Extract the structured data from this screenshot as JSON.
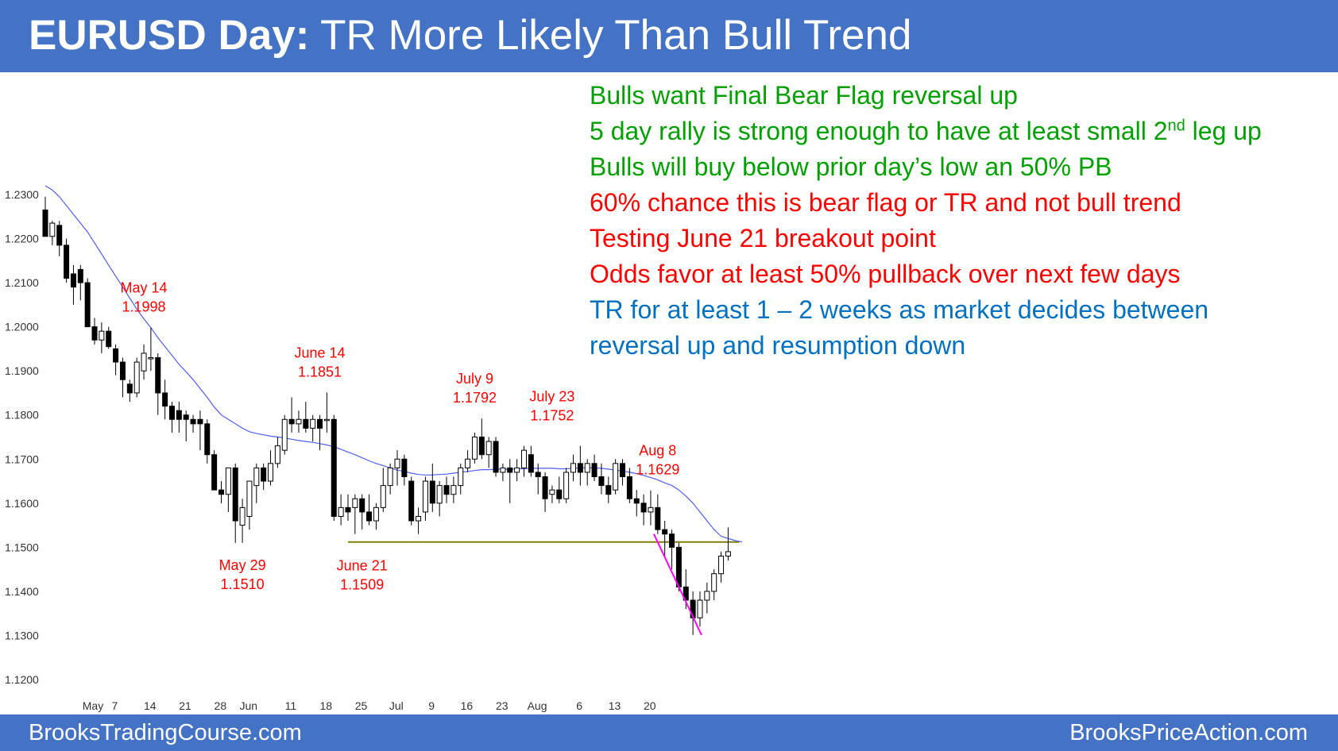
{
  "title": {
    "bold": "EURUSD Day:",
    "rest": " TR More Likely Than Bull Trend"
  },
  "footer": {
    "left": "BrooksTradingCourse.com",
    "right": "BrooksPriceAction.com"
  },
  "colors": {
    "banner": "#4472c4",
    "bull_text": "#00a000",
    "bear_text": "#ff0000",
    "neutral_text": "#0070c0",
    "annotation": "#ff0000",
    "moving_average": "#4f5ff0",
    "support_line": "#808000",
    "trend_line": "#ff00ff",
    "bear_candle": "#000000",
    "bull_candle": "#ffffff"
  },
  "notes": [
    {
      "text": "Bulls want Final Bear Flag reversal up",
      "color": "#00a000"
    },
    {
      "text": "5 day rally is strong enough to have at least small 2",
      "sup": "nd",
      "after": " leg up",
      "color": "#00a000"
    },
    {
      "text": "Bulls will buy below prior day’s low an 50% PB",
      "color": "#00a000"
    },
    {
      "text": "60% chance this is bear flag or TR and not bull trend",
      "color": "#ff0000"
    },
    {
      "text": "Testing June 21 breakout point",
      "color": "#ff0000"
    },
    {
      "text": "Odds favor at least 50% pullback over next few days",
      "color": "#ff0000"
    },
    {
      "text": "TR for at least 1 – 2 weeks as market decides between",
      "color": "#0070c0"
    },
    {
      "text": "reversal up and resumption down",
      "color": "#0070c0"
    }
  ],
  "chart_data": {
    "type": "candlestick",
    "ylim": [
      1.12,
      1.23
    ],
    "y_ticks": [
      "1.2300",
      "1.2200",
      "1.2100",
      "1.2000",
      "1.1900",
      "1.1800",
      "1.1700",
      "1.1600",
      "1.1500",
      "1.1400",
      "1.1300",
      "1.1200"
    ],
    "x_ticks": [
      "May",
      "7",
      "14",
      "21",
      "28",
      "Jun",
      "11",
      "18",
      "25",
      "Jul",
      "9",
      "16",
      "23",
      "Aug",
      "6",
      "13",
      "20"
    ],
    "candles": [
      {
        "d": "May 1",
        "o": 1.2265,
        "h": 1.2295,
        "l": 1.2205,
        "c": 1.2205
      },
      {
        "d": "May 2",
        "o": 1.2205,
        "h": 1.224,
        "l": 1.2185,
        "c": 1.2235
      },
      {
        "d": "May 3",
        "o": 1.223,
        "h": 1.224,
        "l": 1.216,
        "c": 1.2185
      },
      {
        "d": "May 4",
        "o": 1.2185,
        "h": 1.22,
        "l": 1.21,
        "c": 1.211
      },
      {
        "d": "May 7",
        "o": 1.212,
        "h": 1.214,
        "l": 1.205,
        "c": 1.209
      },
      {
        "d": "May 8",
        "o": 1.213,
        "h": 1.214,
        "l": 1.206,
        "c": 1.21
      },
      {
        "d": "May 9",
        "o": 1.21,
        "h": 1.211,
        "l": 1.2,
        "c": 1.2
      },
      {
        "d": "May 10",
        "o": 1.2,
        "h": 1.202,
        "l": 1.196,
        "c": 1.197
      },
      {
        "d": "May 11",
        "o": 1.197,
        "h": 1.201,
        "l": 1.194,
        "c": 1.199
      },
      {
        "d": "May 14",
        "o": 1.199,
        "h": 1.2,
        "l": 1.195,
        "c": 1.1955
      },
      {
        "d": "May 15",
        "o": 1.195,
        "h": 1.196,
        "l": 1.189,
        "c": 1.192
      },
      {
        "d": "May 16",
        "o": 1.192,
        "h": 1.193,
        "l": 1.184,
        "c": 1.188
      },
      {
        "d": "May 17",
        "o": 1.187,
        "h": 1.188,
        "l": 1.183,
        "c": 1.185
      },
      {
        "d": "May 18",
        "o": 1.185,
        "h": 1.193,
        "l": 1.184,
        "c": 1.192
      },
      {
        "d": "May 21",
        "o": 1.19,
        "h": 1.196,
        "l": 1.188,
        "c": 1.194
      },
      {
        "d": "May 22",
        "o": 1.193,
        "h": 1.1998,
        "l": 1.19,
        "c": 1.193
      },
      {
        "d": "May 23",
        "o": 1.193,
        "h": 1.194,
        "l": 1.18,
        "c": 1.185
      },
      {
        "d": "May 24",
        "o": 1.185,
        "h": 1.188,
        "l": 1.179,
        "c": 1.182
      },
      {
        "d": "May 25",
        "o": 1.182,
        "h": 1.183,
        "l": 1.176,
        "c": 1.179
      },
      {
        "d": "May 28",
        "o": 1.181,
        "h": 1.183,
        "l": 1.176,
        "c": 1.179
      },
      {
        "d": "May 29",
        "o": 1.18,
        "h": 1.181,
        "l": 1.174,
        "c": 1.179
      },
      {
        "d": "May 30",
        "o": 1.179,
        "h": 1.18,
        "l": 1.176,
        "c": 1.178
      },
      {
        "d": "May 31",
        "o": 1.179,
        "h": 1.181,
        "l": 1.172,
        "c": 1.178
      },
      {
        "d": "Jun 1",
        "o": 1.178,
        "h": 1.179,
        "l": 1.169,
        "c": 1.171
      },
      {
        "d": "Jun 4",
        "o": 1.171,
        "h": 1.172,
        "l": 1.163,
        "c": 1.163
      },
      {
        "d": "Jun 5",
        "o": 1.163,
        "h": 1.165,
        "l": 1.16,
        "c": 1.162
      },
      {
        "d": "Jun 6",
        "o": 1.162,
        "h": 1.168,
        "l": 1.158,
        "c": 1.168
      },
      {
        "d": "Jun 7",
        "o": 1.168,
        "h": 1.169,
        "l": 1.151,
        "c": 1.156
      },
      {
        "d": "Jun 8",
        "o": 1.155,
        "h": 1.161,
        "l": 1.151,
        "c": 1.159
      },
      {
        "d": "Jun 11",
        "o": 1.157,
        "h": 1.165,
        "l": 1.154,
        "c": 1.165
      },
      {
        "d": "Jun 12",
        "o": 1.164,
        "h": 1.169,
        "l": 1.16,
        "c": 1.168
      },
      {
        "d": "Jun 13",
        "o": 1.168,
        "h": 1.169,
        "l": 1.163,
        "c": 1.165
      },
      {
        "d": "Jun 14",
        "o": 1.165,
        "h": 1.172,
        "l": 1.164,
        "c": 1.169
      },
      {
        "d": "Jun 15",
        "o": 1.169,
        "h": 1.175,
        "l": 1.168,
        "c": 1.173
      },
      {
        "d": "Jun 18",
        "o": 1.172,
        "h": 1.18,
        "l": 1.171,
        "c": 1.179
      },
      {
        "d": "Jun 19",
        "o": 1.179,
        "h": 1.184,
        "l": 1.176,
        "c": 1.178
      },
      {
        "d": "Jun 20",
        "o": 1.178,
        "h": 1.181,
        "l": 1.176,
        "c": 1.179
      },
      {
        "d": "Jun 21",
        "o": 1.179,
        "h": 1.183,
        "l": 1.176,
        "c": 1.177
      },
      {
        "d": "Jun 22",
        "o": 1.177,
        "h": 1.18,
        "l": 1.174,
        "c": 1.179
      },
      {
        "d": "Jun 25",
        "o": 1.179,
        "h": 1.18,
        "l": 1.172,
        "c": 1.177
      },
      {
        "d": "Jun 26",
        "o": 1.179,
        "h": 1.1851,
        "l": 1.176,
        "c": 1.179
      },
      {
        "d": "Jun 27",
        "o": 1.179,
        "h": 1.18,
        "l": 1.156,
        "c": 1.157
      },
      {
        "d": "Jun 28",
        "o": 1.157,
        "h": 1.162,
        "l": 1.155,
        "c": 1.159
      },
      {
        "d": "Jun 29",
        "o": 1.159,
        "h": 1.162,
        "l": 1.156,
        "c": 1.158
      },
      {
        "d": "Jul 2",
        "o": 1.159,
        "h": 1.162,
        "l": 1.153,
        "c": 1.161
      },
      {
        "d": "Jul 3",
        "o": 1.161,
        "h": 1.162,
        "l": 1.154,
        "c": 1.158
      },
      {
        "d": "Jul 4",
        "o": 1.158,
        "h": 1.162,
        "l": 1.155,
        "c": 1.156
      },
      {
        "d": "Jul 5",
        "o": 1.156,
        "h": 1.16,
        "l": 1.154,
        "c": 1.159
      },
      {
        "d": "Jul 6",
        "o": 1.159,
        "h": 1.168,
        "l": 1.158,
        "c": 1.164
      },
      {
        "d": "Jul 9",
        "o": 1.164,
        "h": 1.169,
        "l": 1.162,
        "c": 1.168
      },
      {
        "d": "Jul 10",
        "o": 1.168,
        "h": 1.172,
        "l": 1.164,
        "c": 1.17
      },
      {
        "d": "Jul 11",
        "o": 1.17,
        "h": 1.171,
        "l": 1.164,
        "c": 1.166
      },
      {
        "d": "Jul 12",
        "o": 1.165,
        "h": 1.166,
        "l": 1.155,
        "c": 1.156
      },
      {
        "d": "Jul 13",
        "o": 1.156,
        "h": 1.159,
        "l": 1.153,
        "c": 1.157
      },
      {
        "d": "Jul 16",
        "o": 1.158,
        "h": 1.166,
        "l": 1.156,
        "c": 1.165
      },
      {
        "d": "Jul 17",
        "o": 1.165,
        "h": 1.169,
        "l": 1.158,
        "c": 1.16
      },
      {
        "d": "Jul 18",
        "o": 1.16,
        "h": 1.165,
        "l": 1.157,
        "c": 1.164
      },
      {
        "d": "Jul 19",
        "o": 1.164,
        "h": 1.166,
        "l": 1.16,
        "c": 1.162
      },
      {
        "d": "Jul 20",
        "o": 1.162,
        "h": 1.166,
        "l": 1.16,
        "c": 1.164
      },
      {
        "d": "Jul 23",
        "o": 1.164,
        "h": 1.169,
        "l": 1.162,
        "c": 1.168
      },
      {
        "d": "Jul 24",
        "o": 1.168,
        "h": 1.172,
        "l": 1.167,
        "c": 1.17
      },
      {
        "d": "Jul 25",
        "o": 1.17,
        "h": 1.176,
        "l": 1.169,
        "c": 1.175
      },
      {
        "d": "Jul 26",
        "o": 1.175,
        "h": 1.1792,
        "l": 1.17,
        "c": 1.171
      },
      {
        "d": "Jul 27",
        "o": 1.171,
        "h": 1.175,
        "l": 1.168,
        "c": 1.174
      },
      {
        "d": "Jul 30",
        "o": 1.174,
        "h": 1.175,
        "l": 1.166,
        "c": 1.167
      },
      {
        "d": "Jul 31",
        "o": 1.167,
        "h": 1.169,
        "l": 1.165,
        "c": 1.168
      },
      {
        "d": "Aug 1",
        "o": 1.168,
        "h": 1.17,
        "l": 1.16,
        "c": 1.167
      },
      {
        "d": "Aug 2",
        "o": 1.167,
        "h": 1.17,
        "l": 1.165,
        "c": 1.168
      },
      {
        "d": "Aug 3",
        "o": 1.168,
        "h": 1.173,
        "l": 1.166,
        "c": 1.172
      },
      {
        "d": "Aug 6",
        "o": 1.171,
        "h": 1.173,
        "l": 1.166,
        "c": 1.167
      },
      {
        "d": "Aug 7",
        "o": 1.167,
        "h": 1.169,
        "l": 1.162,
        "c": 1.166
      },
      {
        "d": "Aug 8",
        "o": 1.166,
        "h": 1.167,
        "l": 1.158,
        "c": 1.161
      },
      {
        "d": "Aug 9",
        "o": 1.162,
        "h": 1.164,
        "l": 1.16,
        "c": 1.163
      },
      {
        "d": "Aug 10",
        "o": 1.163,
        "h": 1.166,
        "l": 1.16,
        "c": 1.161
      },
      {
        "d": "Aug 13",
        "o": 1.161,
        "h": 1.168,
        "l": 1.16,
        "c": 1.167
      },
      {
        "d": "Aug 14",
        "o": 1.167,
        "h": 1.171,
        "l": 1.165,
        "c": 1.169
      },
      {
        "d": "Aug 15",
        "o": 1.169,
        "h": 1.173,
        "l": 1.164,
        "c": 1.167
      },
      {
        "d": "Aug 16",
        "o": 1.167,
        "h": 1.17,
        "l": 1.164,
        "c": 1.169
      },
      {
        "d": "Aug 17",
        "o": 1.169,
        "h": 1.171,
        "l": 1.165,
        "c": 1.166
      },
      {
        "d": "Aug 20",
        "o": 1.166,
        "h": 1.169,
        "l": 1.162,
        "c": 1.164
      },
      {
        "d": "Aug 21",
        "o": 1.164,
        "h": 1.166,
        "l": 1.16,
        "c": 1.162
      },
      {
        "d": "Aug 22",
        "o": 1.163,
        "h": 1.17,
        "l": 1.162,
        "c": 1.169
      },
      {
        "d": "Aug 23",
        "o": 1.169,
        "h": 1.17,
        "l": 1.164,
        "c": 1.166
      },
      {
        "d": "Aug 24",
        "o": 1.166,
        "h": 1.168,
        "l": 1.16,
        "c": 1.161
      },
      {
        "d": "Aug 27",
        "o": 1.161,
        "h": 1.163,
        "l": 1.157,
        "c": 1.16
      },
      {
        "d": "Aug 28",
        "o": 1.16,
        "h": 1.162,
        "l": 1.155,
        "c": 1.158
      },
      {
        "d": "Aug 29",
        "o": 1.158,
        "h": 1.1629,
        "l": 1.155,
        "c": 1.159
      },
      {
        "d": "Aug 30",
        "o": 1.159,
        "h": 1.162,
        "l": 1.153,
        "c": 1.154
      },
      {
        "d": "Aug 31",
        "o": 1.154,
        "h": 1.156,
        "l": 1.148,
        "c": 1.153
      },
      {
        "d": "Sep 3",
        "o": 1.153,
        "h": 1.154,
        "l": 1.145,
        "c": 1.15
      },
      {
        "d": "Sep 4",
        "o": 1.15,
        "h": 1.151,
        "l": 1.14,
        "c": 1.141
      },
      {
        "d": "Sep 5",
        "o": 1.141,
        "h": 1.145,
        "l": 1.136,
        "c": 1.138
      },
      {
        "d": "Sep 6",
        "o": 1.138,
        "h": 1.14,
        "l": 1.1301,
        "c": 1.134
      },
      {
        "d": "Sep 7",
        "o": 1.134,
        "h": 1.14,
        "l": 1.132,
        "c": 1.138
      },
      {
        "d": "Sep 10",
        "o": 1.138,
        "h": 1.142,
        "l": 1.135,
        "c": 1.14
      },
      {
        "d": "Sep 11",
        "o": 1.14,
        "h": 1.145,
        "l": 1.138,
        "c": 1.144
      },
      {
        "d": "Sep 12",
        "o": 1.144,
        "h": 1.149,
        "l": 1.142,
        "c": 1.148
      },
      {
        "d": "Sep 13",
        "o": 1.148,
        "h": 1.1545,
        "l": 1.147,
        "c": 1.149
      }
    ],
    "moving_average": [
      1.232,
      1.231,
      1.2295,
      1.2275,
      1.2255,
      1.2235,
      1.2215,
      1.219,
      1.2165,
      1.214,
      1.2115,
      1.209,
      1.2065,
      1.204,
      1.2018,
      1.1998,
      1.1975,
      1.1955,
      1.1935,
      1.1915,
      1.1898,
      1.188,
      1.186,
      1.184,
      1.1818,
      1.18,
      1.179,
      1.178,
      1.177,
      1.1762,
      1.1758,
      1.1755,
      1.1752,
      1.175,
      1.1748,
      1.1745,
      1.1742,
      1.174,
      1.1738,
      1.1735,
      1.1732,
      1.1728,
      1.1722,
      1.1716,
      1.171,
      1.1703,
      1.1696,
      1.169,
      1.1685,
      1.168,
      1.1675,
      1.1672,
      1.1668,
      1.1665,
      1.1664,
      1.1664,
      1.1665,
      1.1666,
      1.1668,
      1.167,
      1.1672,
      1.1674,
      1.1676,
      1.1676,
      1.1677,
      1.1677,
      1.1677,
      1.1678,
      1.1678,
      1.1679,
      1.1679,
      1.1679,
      1.1679,
      1.1678,
      1.1678,
      1.1679,
      1.168,
      1.168,
      1.168,
      1.1679,
      1.1677,
      1.1675,
      1.1673,
      1.167,
      1.1667,
      1.1663,
      1.1658,
      1.1653,
      1.1646,
      1.164,
      1.163,
      1.1616,
      1.16,
      1.158,
      1.156,
      1.154,
      1.1525,
      1.152,
      1.1515,
      1.1512
    ],
    "support_line": {
      "price": 1.1512,
      "from": "Jun 29",
      "to": "Sep 13"
    },
    "trend_line": {
      "from": {
        "d": "Aug 29",
        "price": 1.153
      },
      "to": {
        "d": "Sep 7",
        "price": 1.1301
      }
    },
    "annotations": [
      {
        "date": "May 21",
        "price": 1.1998,
        "line1": "May 14",
        "line2": "1.1998",
        "pos": "above"
      },
      {
        "date": "Jun 8",
        "price": 1.151,
        "line1": "May 29",
        "line2": "1.1510",
        "pos": "below"
      },
      {
        "date": "Jun 25",
        "price": 1.1851,
        "line1": "June 14",
        "line2": "1.1851",
        "pos": "above"
      },
      {
        "date": "Jul 3",
        "price": 1.1509,
        "line1": "June 21",
        "line2": "1.1509",
        "pos": "below"
      },
      {
        "date": "Jul 25",
        "price": 1.1792,
        "line1": "July 9",
        "line2": "1.1792",
        "pos": "above"
      },
      {
        "date": "Aug 9",
        "price": 1.1752,
        "line1": "July 23",
        "line2": "1.1752",
        "pos": "above"
      },
      {
        "date": "Aug 30",
        "price": 1.1629,
        "line1": "Aug 8",
        "line2": "1.1629",
        "pos": "above"
      }
    ]
  }
}
